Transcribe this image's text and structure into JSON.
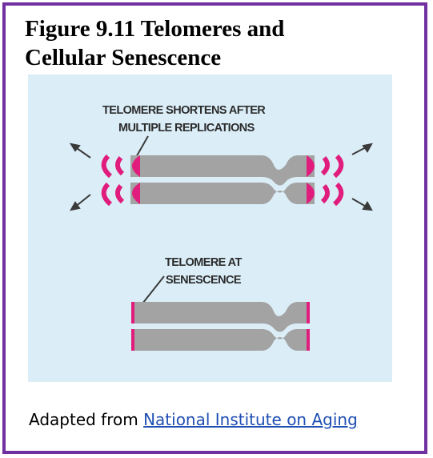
{
  "title": {
    "line1": "Figure 9.11 Telomeres and",
    "line2": "Cellular Senescence"
  },
  "diagram": {
    "label_top": [
      "TELOMERE SHORTENS AFTER",
      "MULTIPLE REPLICATIONS"
    ],
    "label_bottom": [
      "TELOMERE AT",
      "SENESCENCE"
    ],
    "colors": {
      "background": "#dbeef8",
      "chromosome": "#a3a3a3",
      "telomere": "#e01d7c",
      "arrow": "#3a3a3a"
    }
  },
  "caption": {
    "prefix": "Adapted from",
    "link_text": "National Institute on Aging"
  },
  "frame_color": "#7030a0"
}
